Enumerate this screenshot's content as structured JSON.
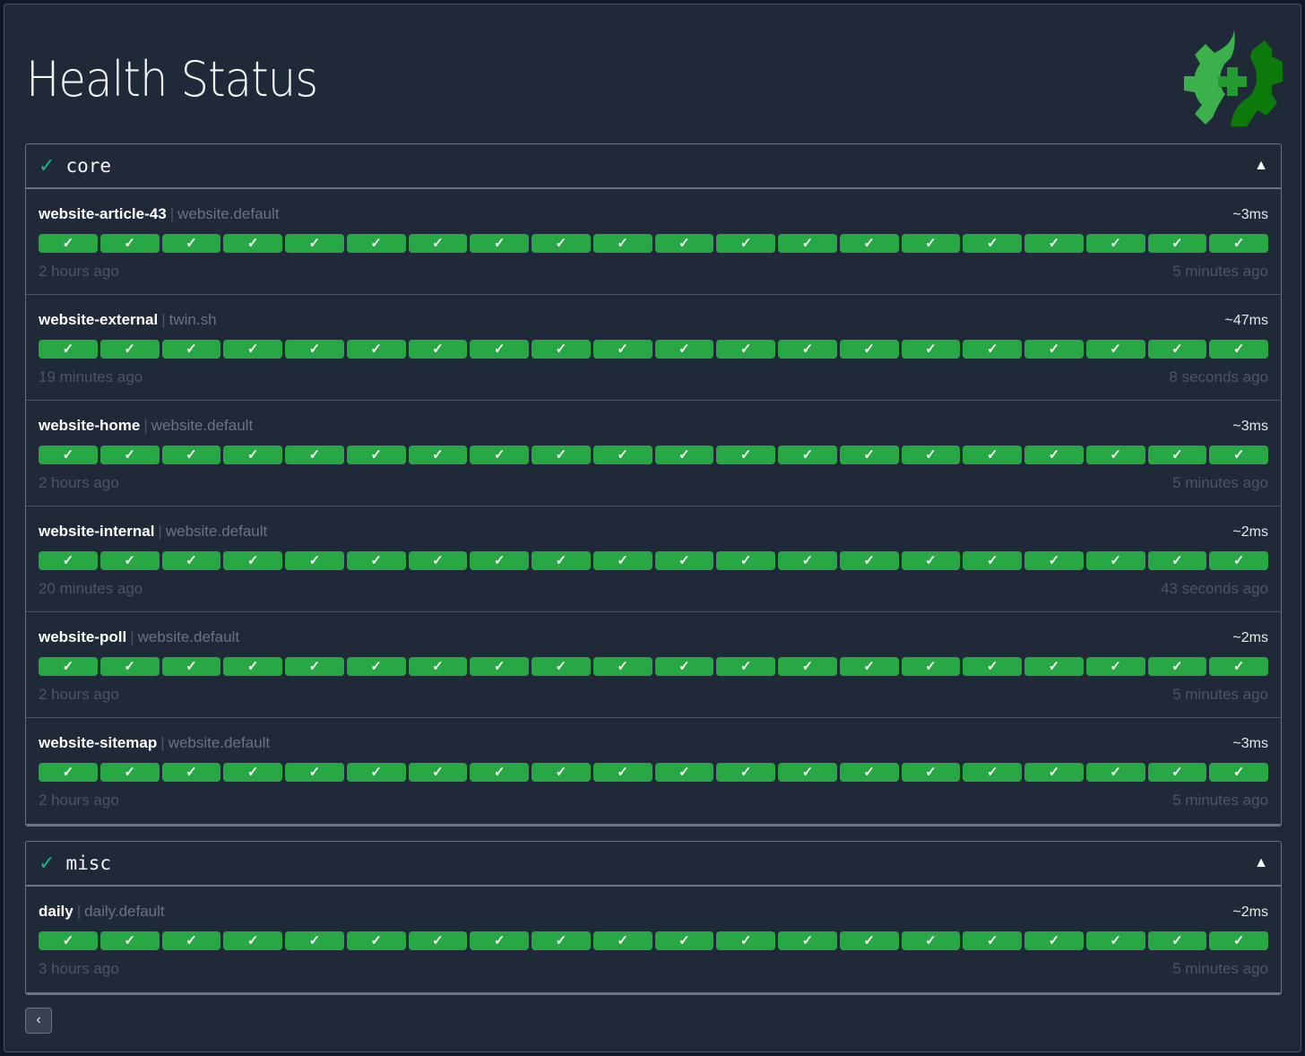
{
  "title": "Health Status",
  "colors": {
    "success": "#28a745",
    "group_check": "#10b981",
    "background": "#1f2937"
  },
  "logo": {
    "icon": "gear-health-plus-icon"
  },
  "groups": [
    {
      "name": "core",
      "status_icon": "✓",
      "toggle_icon": "▲",
      "endpoints": [
        {
          "name": "website-article-43",
          "group": "website.default",
          "response_time": "~3ms",
          "oldest": "2 hours ago",
          "newest": "5 minutes ago",
          "results": [
            "success",
            "success",
            "success",
            "success",
            "success",
            "success",
            "success",
            "success",
            "success",
            "success",
            "success",
            "success",
            "success",
            "success",
            "success",
            "success",
            "success",
            "success",
            "success",
            "success"
          ]
        },
        {
          "name": "website-external",
          "group": "twin.sh",
          "response_time": "~47ms",
          "oldest": "19 minutes ago",
          "newest": "8 seconds ago",
          "results": [
            "success",
            "success",
            "success",
            "success",
            "success",
            "success",
            "success",
            "success",
            "success",
            "success",
            "success",
            "success",
            "success",
            "success",
            "success",
            "success",
            "success",
            "success",
            "success",
            "success"
          ]
        },
        {
          "name": "website-home",
          "group": "website.default",
          "response_time": "~3ms",
          "oldest": "2 hours ago",
          "newest": "5 minutes ago",
          "results": [
            "success",
            "success",
            "success",
            "success",
            "success",
            "success",
            "success",
            "success",
            "success",
            "success",
            "success",
            "success",
            "success",
            "success",
            "success",
            "success",
            "success",
            "success",
            "success",
            "success"
          ]
        },
        {
          "name": "website-internal",
          "group": "website.default",
          "response_time": "~2ms",
          "oldest": "20 minutes ago",
          "newest": "43 seconds ago",
          "results": [
            "success",
            "success",
            "success",
            "success",
            "success",
            "success",
            "success",
            "success",
            "success",
            "success",
            "success",
            "success",
            "success",
            "success",
            "success",
            "success",
            "success",
            "success",
            "success",
            "success"
          ]
        },
        {
          "name": "website-poll",
          "group": "website.default",
          "response_time": "~2ms",
          "oldest": "2 hours ago",
          "newest": "5 minutes ago",
          "results": [
            "success",
            "success",
            "success",
            "success",
            "success",
            "success",
            "success",
            "success",
            "success",
            "success",
            "success",
            "success",
            "success",
            "success",
            "success",
            "success",
            "success",
            "success",
            "success",
            "success"
          ]
        },
        {
          "name": "website-sitemap",
          "group": "website.default",
          "response_time": "~3ms",
          "oldest": "2 hours ago",
          "newest": "5 minutes ago",
          "results": [
            "success",
            "success",
            "success",
            "success",
            "success",
            "success",
            "success",
            "success",
            "success",
            "success",
            "success",
            "success",
            "success",
            "success",
            "success",
            "success",
            "success",
            "success",
            "success",
            "success"
          ]
        }
      ]
    },
    {
      "name": "misc",
      "status_icon": "✓",
      "toggle_icon": "▲",
      "endpoints": [
        {
          "name": "daily",
          "group": "daily.default",
          "response_time": "~2ms",
          "oldest": "3 hours ago",
          "newest": "5 minutes ago",
          "results": [
            "success",
            "success",
            "success",
            "success",
            "success",
            "success",
            "success",
            "success",
            "success",
            "success",
            "success",
            "success",
            "success",
            "success",
            "success",
            "success",
            "success",
            "success",
            "success",
            "success"
          ]
        }
      ]
    }
  ],
  "result_glyph": "✓",
  "separator": "|",
  "back_button": {
    "label": "‹",
    "icon": "chevron-left-icon"
  }
}
